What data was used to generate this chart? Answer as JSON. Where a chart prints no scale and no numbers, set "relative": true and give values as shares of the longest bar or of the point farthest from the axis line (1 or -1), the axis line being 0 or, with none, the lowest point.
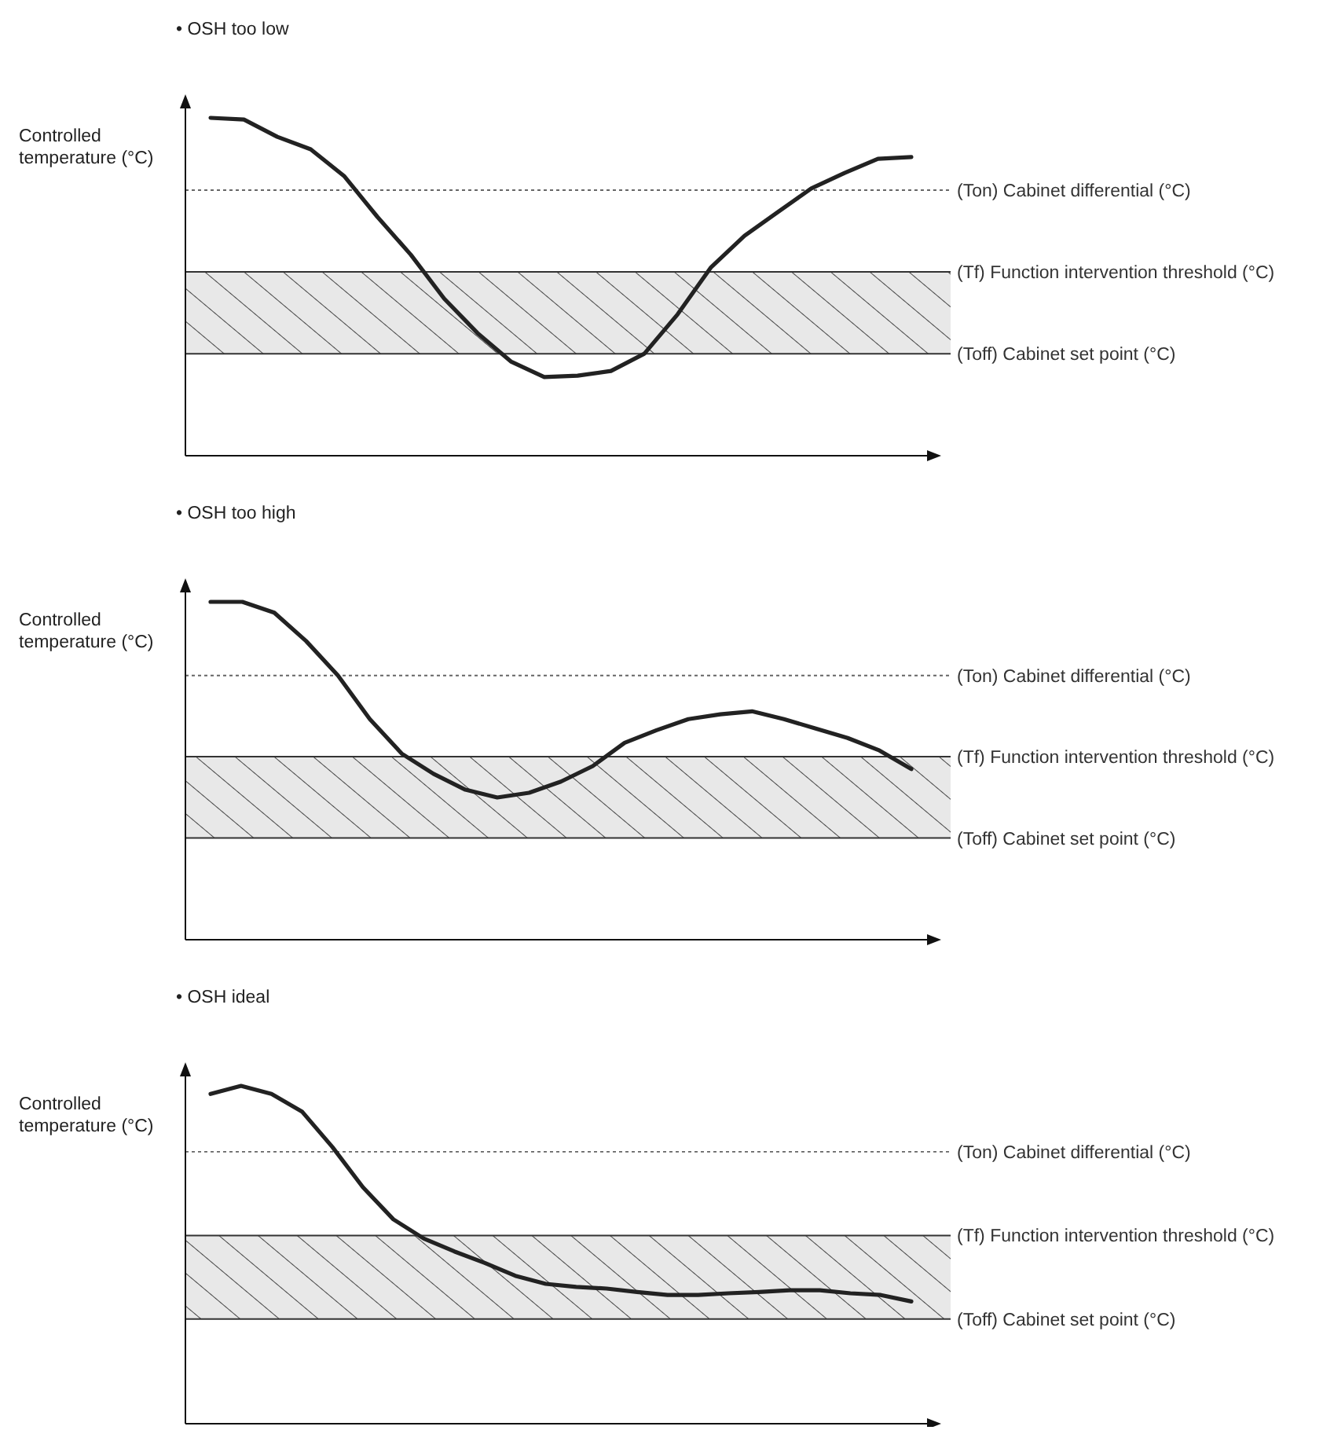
{
  "chart_data": [
    {
      "type": "line",
      "title": "• OSH too low",
      "ylabel": "Controlled temperature (°C)",
      "relative": true,
      "categories": [
        null,
        null,
        null,
        null,
        null,
        null,
        null,
        null,
        null,
        null,
        null,
        null,
        null,
        null,
        null,
        null,
        null,
        null,
        null,
        null,
        null,
        null
      ],
      "series": [
        {
          "color": "#222222",
          "values": [
            1.0,
            0.995,
            0.944,
            0.907,
            0.828,
            0.707,
            0.595,
            0.465,
            0.363,
            0.279,
            0.233,
            0.237,
            0.251,
            0.302,
            0.419,
            0.558,
            0.651,
            0.721,
            0.791,
            0.837,
            0.879,
            0.884
          ]
        }
      ],
      "ref_lines": [
        {
          "axis": "y",
          "value": 0.786,
          "label": "(Ton) Cabinet differential (°C)",
          "color": "#666666",
          "line_style": "dotted"
        },
        {
          "axis": "y",
          "value": 0.544,
          "label": "(Tf) Function intervention threshold (°C)",
          "color": "#333333",
          "line_style": "solid"
        },
        {
          "axis": "y",
          "value": 0.302,
          "label": "(Toff) Cabinet set point (°C)",
          "color": "#333333",
          "line_style": "solid"
        }
      ],
      "bands": [
        {
          "axis": "y",
          "from": 0.302,
          "to": 0.544,
          "color": "#e8e8e8"
        }
      ],
      "line_style": "solid",
      "marker": "none"
    },
    {
      "type": "line",
      "title": "• OSH too high",
      "ylabel": "Controlled temperature (°C)",
      "relative": true,
      "categories": [
        null,
        null,
        null,
        null,
        null,
        null,
        null,
        null,
        null,
        null,
        null,
        null,
        null,
        null,
        null,
        null,
        null,
        null,
        null,
        null,
        null,
        null,
        null
      ],
      "series": [
        {
          "color": "#222222",
          "values": [
            1.0,
            1.0,
            0.968,
            0.884,
            0.782,
            0.653,
            0.551,
            0.491,
            0.444,
            0.421,
            0.435,
            0.468,
            0.514,
            0.583,
            0.62,
            0.653,
            0.667,
            0.676,
            0.653,
            0.625,
            0.597,
            0.56,
            0.505
          ]
        }
      ],
      "ref_lines": [
        {
          "axis": "y",
          "value": 0.782,
          "label": "(Ton) Cabinet differential (°C)",
          "color": "#666666",
          "line_style": "dotted"
        },
        {
          "axis": "y",
          "value": 0.542,
          "label": "(Tf) Function intervention threshold (°C)",
          "color": "#333333",
          "line_style": "solid"
        },
        {
          "axis": "y",
          "value": 0.301,
          "label": "(Toff) Cabinet set point (°C)",
          "color": "#333333",
          "line_style": "solid"
        }
      ],
      "bands": [
        {
          "axis": "y",
          "from": 0.301,
          "to": 0.542,
          "color": "#e8e8e8"
        }
      ],
      "line_style": "solid",
      "marker": "none"
    },
    {
      "type": "line",
      "title": "• OSH ideal",
      "ylabel": "Controlled temperature (°C)",
      "relative": true,
      "categories": [
        null,
        null,
        null,
        null,
        null,
        null,
        null,
        null,
        null,
        null,
        null,
        null,
        null,
        null,
        null,
        null,
        null,
        null,
        null,
        null,
        null,
        null,
        null,
        null
      ],
      "series": [
        {
          "color": "#222222",
          "values": [
            0.976,
            1.0,
            0.976,
            0.924,
            0.819,
            0.7,
            0.605,
            0.548,
            0.51,
            0.476,
            0.438,
            0.414,
            0.405,
            0.4,
            0.39,
            0.381,
            0.381,
            0.386,
            0.39,
            0.395,
            0.395,
            0.386,
            0.381,
            0.362
          ]
        }
      ],
      "ref_lines": [
        {
          "axis": "y",
          "value": 0.805,
          "label": "(Ton) Cabinet differential (°C)",
          "color": "#666666",
          "line_style": "dotted"
        },
        {
          "axis": "y",
          "value": 0.557,
          "label": "(Tf) Function intervention threshold (°C)",
          "color": "#333333",
          "line_style": "solid"
        },
        {
          "axis": "y",
          "value": 0.31,
          "label": "(Toff) Cabinet set point (°C)",
          "color": "#333333",
          "line_style": "solid"
        }
      ],
      "bands": [
        {
          "axis": "y",
          "from": 0.31,
          "to": 0.557,
          "color": "#e8e8e8"
        }
      ],
      "line_style": "solid",
      "marker": "none"
    }
  ]
}
